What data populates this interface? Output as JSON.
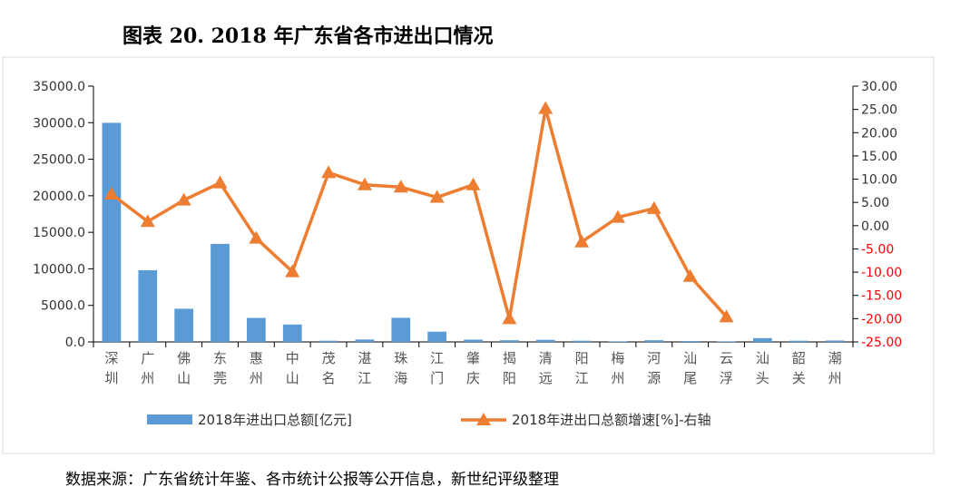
{
  "chart_data": {
    "type": "bar+line",
    "title": "图表 20. 2018 年广东省各市进出口情况",
    "source": "数据来源：广东省统计年鉴、各市统计公报等公开信息，新世纪评级整理",
    "categories": [
      [
        "深",
        "圳"
      ],
      [
        "广",
        "州"
      ],
      [
        "佛",
        "山"
      ],
      [
        "东",
        "莞"
      ],
      [
        "惠",
        "州"
      ],
      [
        "中",
        "山"
      ],
      [
        "茂",
        "名"
      ],
      [
        "湛",
        "江"
      ],
      [
        "珠",
        "海"
      ],
      [
        "江",
        "门"
      ],
      [
        "肇",
        "庆"
      ],
      [
        "揭",
        "阳"
      ],
      [
        "清",
        "远"
      ],
      [
        "阳",
        "江"
      ],
      [
        "梅",
        "州"
      ],
      [
        "河",
        "源"
      ],
      [
        "汕",
        "尾"
      ],
      [
        "云",
        "浮"
      ],
      [
        "汕",
        "头"
      ],
      [
        "韶",
        "关"
      ],
      [
        "潮",
        "州"
      ]
    ],
    "series": [
      {
        "name": "2018年进出口总额[亿元]",
        "type": "bar",
        "axis": "left",
        "color": "#5B9BD5",
        "values": [
          29983.7,
          9810.2,
          4542.3,
          13418.3,
          3284.0,
          2382.0,
          160.0,
          330.0,
          3300.0,
          1400.0,
          310.0,
          230.0,
          280.0,
          160.0,
          80.0,
          230.0,
          120.0,
          80.0,
          520.0,
          160.0,
          190.0
        ]
      },
      {
        "name": "2018年进出口总额增速[%]-右轴",
        "type": "line",
        "axis": "right",
        "color": "#ED7D31",
        "values": [
          6.8,
          0.9,
          5.5,
          9.2,
          -2.7,
          -9.9,
          11.4,
          8.8,
          8.3,
          6.1,
          8.8,
          -20.0,
          25.2,
          -3.5,
          1.8,
          3.7,
          -10.9,
          -19.6,
          null,
          null,
          null
        ]
      }
    ],
    "y_left": {
      "min": 0,
      "max": 35000,
      "step": 5000,
      "decimals": 1
    },
    "y_right": {
      "min": -25,
      "max": 30,
      "step": 5,
      "decimals": 2,
      "negative_color": "#FF0000"
    },
    "legend_position": "bottom",
    "grid": false
  }
}
